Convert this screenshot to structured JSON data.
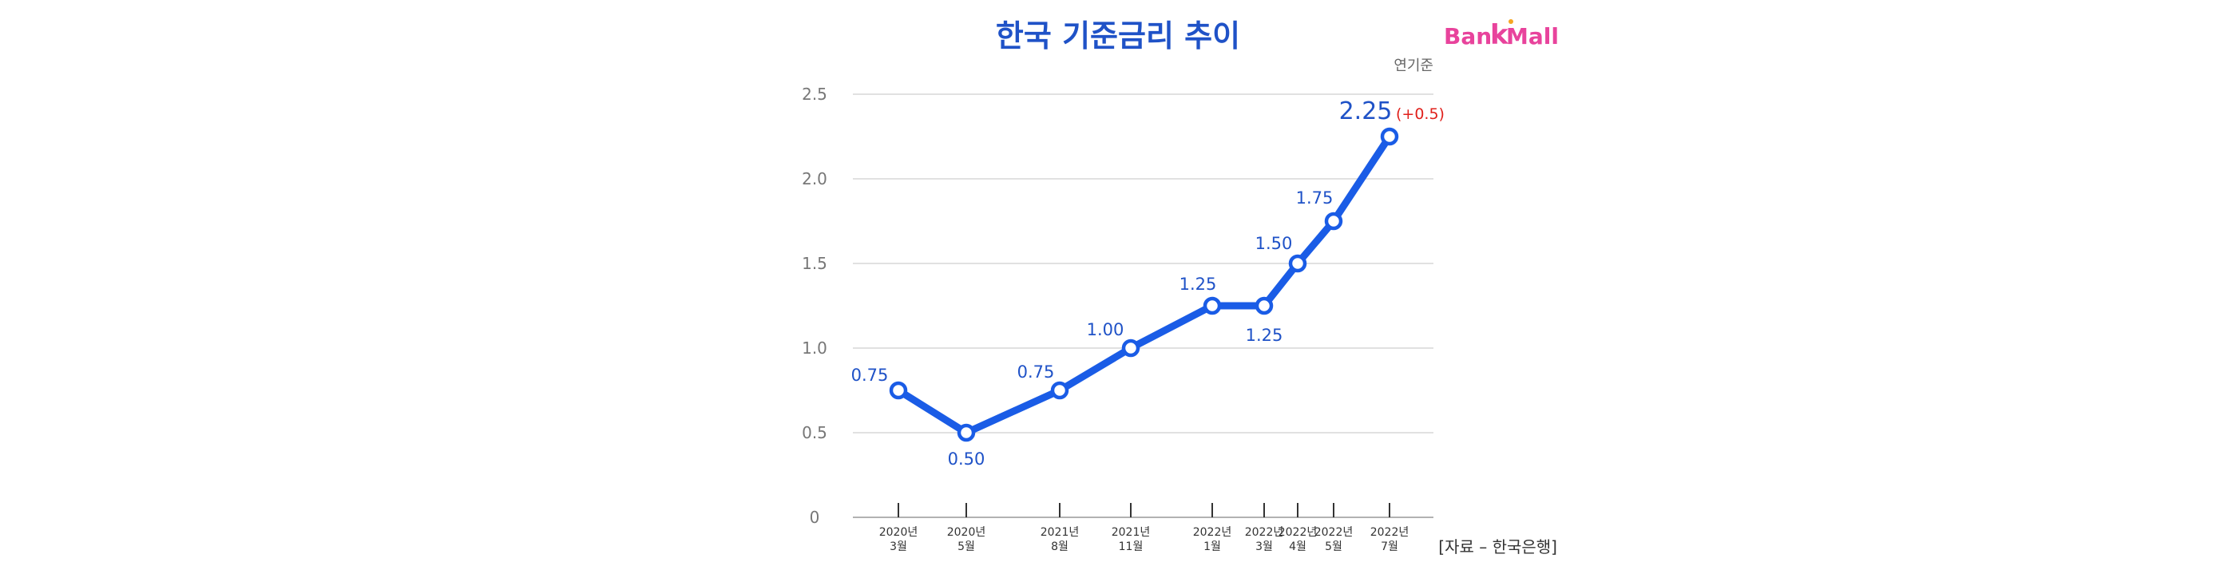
{
  "chart_data": {
    "type": "line",
    "title": "한국 기준금리 추이",
    "unit_note": "연기준",
    "source": "[자료 – 한국은행]",
    "brand": "BankMall",
    "ylim": [
      0,
      2.5
    ],
    "y_ticks": [
      "0",
      "0.5",
      "1.0",
      "1.5",
      "2.0",
      "2.5"
    ],
    "grid": true,
    "x": [
      {
        "year": "2020년",
        "month": "3월"
      },
      {
        "year": "2020년",
        "month": "5월"
      },
      {
        "year": "2021년",
        "month": "8월"
      },
      {
        "year": "2021년",
        "month": "11월"
      },
      {
        "year": "2022년",
        "month": "1월"
      },
      {
        "year": "2022년",
        "month": "3월"
      },
      {
        "year": "2022년",
        "month": "4월"
      },
      {
        "year": "2022년",
        "month": "5월"
      },
      {
        "year": "2022년",
        "month": "7월"
      }
    ],
    "series": [
      {
        "values": [
          0.75,
          0.5,
          0.75,
          1.0,
          1.25,
          1.25,
          1.5,
          1.75,
          2.25
        ],
        "labels": [
          "0.75",
          "0.50",
          "0.75",
          "1.00",
          "1.25",
          "1.25",
          "1.50",
          "1.75",
          "2.25"
        ]
      }
    ],
    "annotation": "(+0.5)",
    "colors": {
      "line": "#1a5ce6",
      "label": "#1f52c7",
      "annotation": "#e0201b",
      "grid": "#cfcfcf",
      "axis": "#777777",
      "title": "#1f52c7"
    }
  }
}
